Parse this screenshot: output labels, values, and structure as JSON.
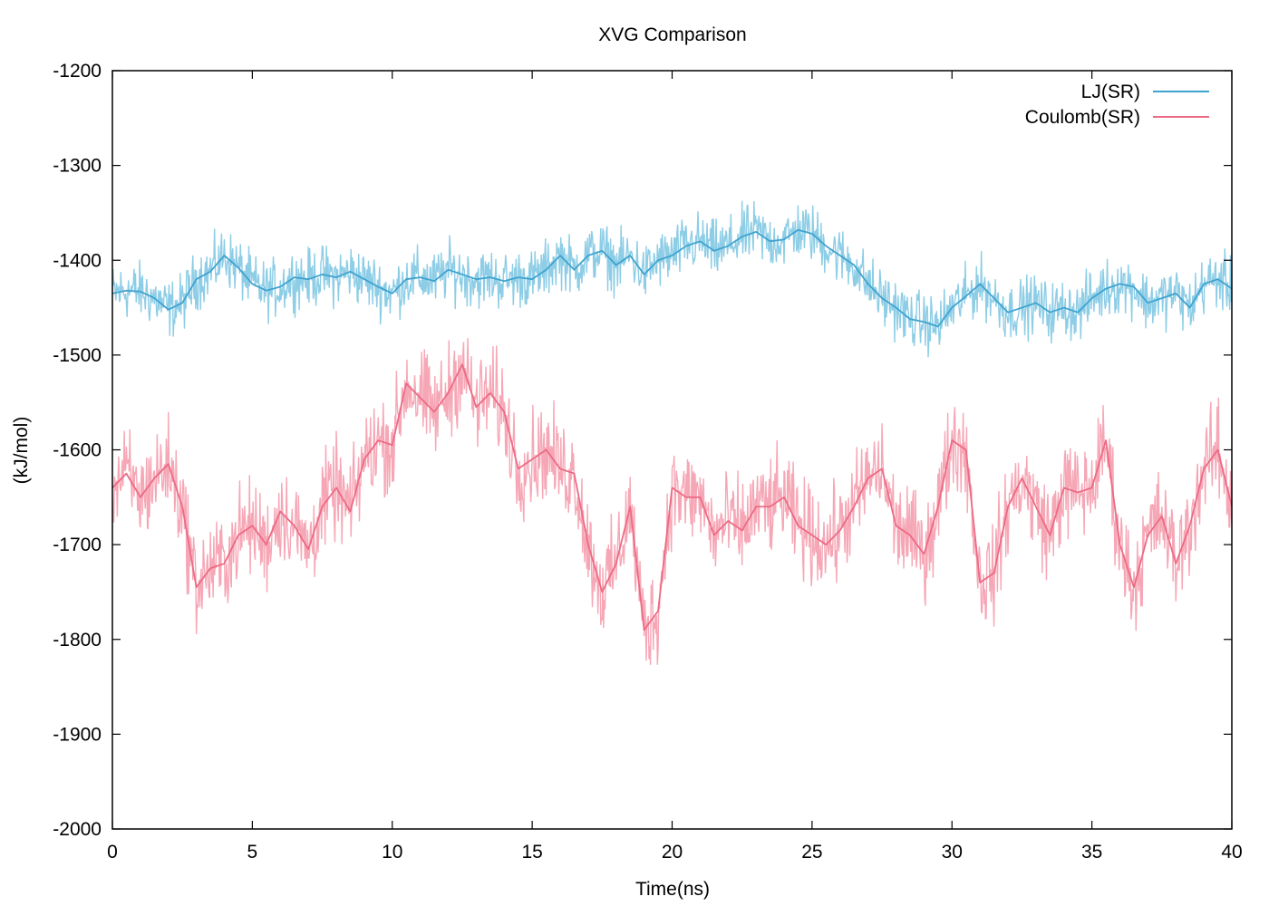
{
  "chart_data": {
    "type": "line",
    "title": "XVG Comparison",
    "xlabel": "Time(ns)",
    "ylabel": "(kJ/mol)",
    "xlim": [
      0,
      40
    ],
    "ylim": [
      -2000,
      -1200
    ],
    "xticks": [
      0,
      5,
      10,
      15,
      20,
      25,
      30,
      35,
      40
    ],
    "yticks": [
      -2000,
      -1900,
      -1800,
      -1700,
      -1600,
      -1500,
      -1400,
      -1300,
      -1200
    ],
    "grid": false,
    "legend_position": "top-right",
    "series": [
      {
        "name": "LJ(SR)",
        "color": "#3fa3cf",
        "raw_color": "#8dcde6",
        "noise_amplitude": 45,
        "x": [
          0,
          0.5,
          1,
          1.5,
          2,
          2.5,
          3,
          3.5,
          4,
          4.5,
          5,
          5.5,
          6,
          6.5,
          7,
          7.5,
          8,
          8.5,
          9,
          9.5,
          10,
          10.5,
          11,
          11.5,
          12,
          12.5,
          13,
          13.5,
          14,
          14.5,
          15,
          15.5,
          16,
          16.5,
          17,
          17.5,
          18,
          18.5,
          19,
          19.5,
          20,
          20.5,
          21,
          21.5,
          22,
          22.5,
          23,
          23.5,
          24,
          24.5,
          25,
          25.5,
          26,
          26.5,
          27,
          27.5,
          28,
          28.5,
          29,
          29.5,
          30,
          30.5,
          31,
          31.5,
          32,
          32.5,
          33,
          33.5,
          34,
          34.5,
          35,
          35.5,
          36,
          36.5,
          37,
          37.5,
          38,
          38.5,
          39,
          39.5,
          40
        ],
        "y": [
          -1435,
          -1432,
          -1433,
          -1440,
          -1452,
          -1445,
          -1420,
          -1412,
          -1395,
          -1408,
          -1425,
          -1432,
          -1428,
          -1418,
          -1420,
          -1415,
          -1418,
          -1412,
          -1420,
          -1428,
          -1435,
          -1420,
          -1418,
          -1422,
          -1410,
          -1415,
          -1420,
          -1418,
          -1422,
          -1418,
          -1420,
          -1410,
          -1395,
          -1410,
          -1395,
          -1390,
          -1405,
          -1395,
          -1415,
          -1400,
          -1395,
          -1385,
          -1380,
          -1390,
          -1385,
          -1375,
          -1370,
          -1380,
          -1378,
          -1368,
          -1372,
          -1385,
          -1395,
          -1405,
          -1425,
          -1440,
          -1450,
          -1462,
          -1465,
          -1470,
          -1450,
          -1438,
          -1425,
          -1440,
          -1455,
          -1450,
          -1445,
          -1455,
          -1450,
          -1455,
          -1440,
          -1430,
          -1425,
          -1428,
          -1445,
          -1440,
          -1435,
          -1450,
          -1425,
          -1420,
          -1430
        ]
      },
      {
        "name": "Coulomb(SR)",
        "color": "#ec6a84",
        "raw_color": "#f6a7b6",
        "noise_amplitude": 75,
        "x": [
          0,
          0.5,
          1,
          1.5,
          2,
          2.5,
          3,
          3.5,
          4,
          4.5,
          5,
          5.5,
          6,
          6.5,
          7,
          7.5,
          8,
          8.5,
          9,
          9.5,
          10,
          10.5,
          11,
          11.5,
          12,
          12.5,
          13,
          13.5,
          14,
          14.5,
          15,
          15.5,
          16,
          16.5,
          17,
          17.5,
          18,
          18.5,
          19,
          19.5,
          20,
          20.5,
          21,
          21.5,
          22,
          22.5,
          23,
          23.5,
          24,
          24.5,
          25,
          25.5,
          26,
          26.5,
          27,
          27.5,
          28,
          28.5,
          29,
          29.5,
          30,
          30.5,
          31,
          31.5,
          32,
          32.5,
          33,
          33.5,
          34,
          34.5,
          35,
          35.5,
          36,
          36.5,
          37,
          37.5,
          38,
          38.5,
          39,
          39.5,
          40
        ],
        "y": [
          -1640,
          -1625,
          -1650,
          -1630,
          -1615,
          -1660,
          -1745,
          -1725,
          -1720,
          -1690,
          -1680,
          -1700,
          -1665,
          -1680,
          -1705,
          -1660,
          -1640,
          -1665,
          -1610,
          -1590,
          -1595,
          -1530,
          -1545,
          -1560,
          -1540,
          -1510,
          -1555,
          -1540,
          -1560,
          -1620,
          -1610,
          -1600,
          -1620,
          -1625,
          -1700,
          -1750,
          -1720,
          -1660,
          -1790,
          -1770,
          -1640,
          -1650,
          -1650,
          -1690,
          -1675,
          -1685,
          -1660,
          -1660,
          -1650,
          -1680,
          -1690,
          -1700,
          -1685,
          -1660,
          -1630,
          -1620,
          -1680,
          -1690,
          -1710,
          -1660,
          -1590,
          -1600,
          -1740,
          -1730,
          -1660,
          -1630,
          -1660,
          -1690,
          -1640,
          -1645,
          -1640,
          -1590,
          -1700,
          -1745,
          -1690,
          -1670,
          -1720,
          -1680,
          -1620,
          -1600,
          -1660
        ]
      }
    ]
  }
}
